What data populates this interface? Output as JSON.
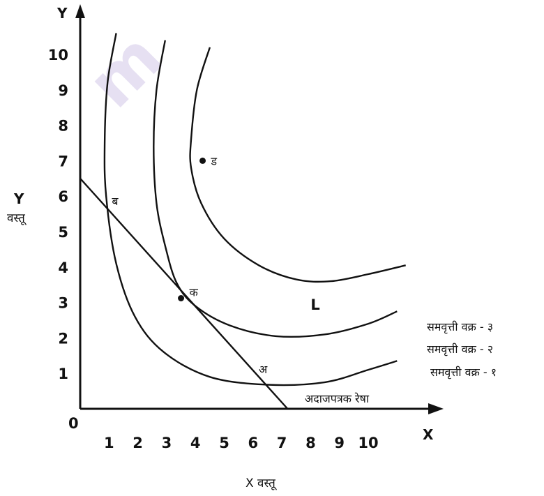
{
  "chart_data": {
    "type": "line",
    "title": "",
    "xlim": [
      0,
      11
    ],
    "ylim": [
      0,
      11
    ],
    "x_ticks": [
      1,
      2,
      3,
      4,
      5,
      6,
      7,
      8,
      9,
      10
    ],
    "y_ticks": [
      1,
      2,
      3,
      4,
      5,
      6,
      7,
      8,
      9,
      10
    ],
    "origin_label": "0",
    "x_axis_letter": "X",
    "y_axis_letter": "Y",
    "xlabel": "X वस्तू",
    "ylabel_top": "Y",
    "ylabel_bottom": "वस्तू",
    "grid": false,
    "series": [
      {
        "name": "समवृत्ती वक्र - १",
        "points": [
          [
            1.25,
            10.6
          ],
          [
            0.95,
            9.2
          ],
          [
            0.85,
            7.5
          ],
          [
            0.9,
            6.0
          ],
          [
            1.25,
            4.1
          ],
          [
            1.9,
            2.6
          ],
          [
            2.9,
            1.6
          ],
          [
            4.5,
            0.9
          ],
          [
            6.5,
            0.68
          ],
          [
            8.5,
            0.75
          ],
          [
            10.0,
            1.1
          ],
          [
            11.0,
            1.35
          ]
        ]
      },
      {
        "name": "समवृत्ती वक्र - २",
        "points": [
          [
            2.95,
            10.4
          ],
          [
            2.65,
            9.0
          ],
          [
            2.55,
            7.4
          ],
          [
            2.65,
            5.8
          ],
          [
            2.95,
            4.6
          ],
          [
            3.35,
            3.55
          ],
          [
            4.0,
            2.9
          ],
          [
            5.2,
            2.35
          ],
          [
            6.8,
            2.05
          ],
          [
            8.5,
            2.1
          ],
          [
            10.0,
            2.4
          ],
          [
            11.0,
            2.75
          ]
        ]
      },
      {
        "name": "समवृत्ती वक्र - ३",
        "points": [
          [
            4.5,
            10.2
          ],
          [
            4.05,
            9.0
          ],
          [
            3.85,
            7.6
          ],
          [
            3.85,
            6.8
          ],
          [
            4.2,
            5.8
          ],
          [
            5.0,
            4.8
          ],
          [
            6.2,
            4.05
          ],
          [
            7.5,
            3.65
          ],
          [
            8.7,
            3.6
          ],
          [
            10.0,
            3.8
          ],
          [
            11.3,
            4.05
          ]
        ]
      }
    ],
    "budget_line": {
      "name": "अदाजपत्रक रेषा",
      "points": [
        [
          0,
          6.5
        ],
        [
          7.2,
          0
        ]
      ]
    },
    "marked_points": [
      {
        "label": "ड",
        "x": 4.25,
        "y": 7.0
      },
      {
        "label": "क",
        "x": 3.5,
        "y": 3.12
      }
    ],
    "annotations": [
      {
        "text": "ब",
        "x": 1.1,
        "y": 5.75
      },
      {
        "text": "अ",
        "x": 6.2,
        "y": 1.0
      },
      {
        "text": "L",
        "x": 8.0,
        "y": 2.8
      }
    ],
    "legend": [
      "समवृत्ती वक्र - ३",
      "समवृत्ती वक्र - २",
      "समवृत्ती वक्र - १"
    ]
  }
}
